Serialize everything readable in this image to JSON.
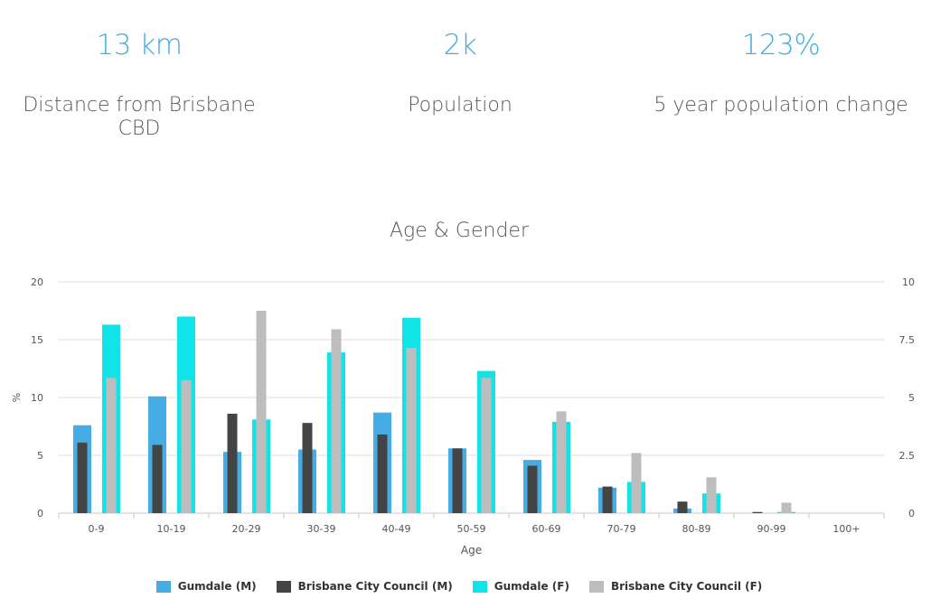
{
  "stats": [
    {
      "value": "13 km",
      "label": "Distance from Brisbane CBD"
    },
    {
      "value": "2k",
      "label": "Population"
    },
    {
      "value": "123%",
      "label": "5 year population change"
    }
  ],
  "chart_data": {
    "type": "bar",
    "title": "Age & Gender",
    "xlabel": "Age",
    "ylabel": "%",
    "ylim": [
      0,
      20
    ],
    "y2lim": [
      0,
      10
    ],
    "yticks": [
      "0",
      "5",
      "10",
      "15",
      "20"
    ],
    "y2ticks": [
      "0",
      "2.5",
      "5",
      "7.5",
      "10"
    ],
    "grid": true,
    "legend_position": "bottom",
    "categories": [
      "0-9",
      "10-19",
      "20-29",
      "30-39",
      "40-49",
      "50-59",
      "60-69",
      "70-79",
      "80-89",
      "90-99",
      "100+"
    ],
    "series": [
      {
        "name": "Gumdale (M)",
        "color": "#45ade3",
        "values": [
          7.6,
          10.1,
          5.3,
          5.5,
          8.7,
          5.6,
          4.6,
          2.2,
          0.4,
          0,
          0
        ]
      },
      {
        "name": "Brisbane City Council (M)",
        "color": "#444444",
        "values": [
          6.1,
          5.9,
          8.6,
          7.8,
          6.8,
          5.6,
          4.1,
          2.3,
          1.0,
          0.1,
          0
        ]
      },
      {
        "name": "Gumdale (F)",
        "color": "#10e4e8",
        "values": [
          16.3,
          17.0,
          8.1,
          13.9,
          16.9,
          12.3,
          7.9,
          2.7,
          1.7,
          0.1,
          0
        ]
      },
      {
        "name": "Brisbane City Council (F)",
        "color": "#bdbdbd",
        "values": [
          11.7,
          11.5,
          17.5,
          15.9,
          14.3,
          11.7,
          8.8,
          5.2,
          3.1,
          0.9,
          0
        ]
      }
    ]
  }
}
